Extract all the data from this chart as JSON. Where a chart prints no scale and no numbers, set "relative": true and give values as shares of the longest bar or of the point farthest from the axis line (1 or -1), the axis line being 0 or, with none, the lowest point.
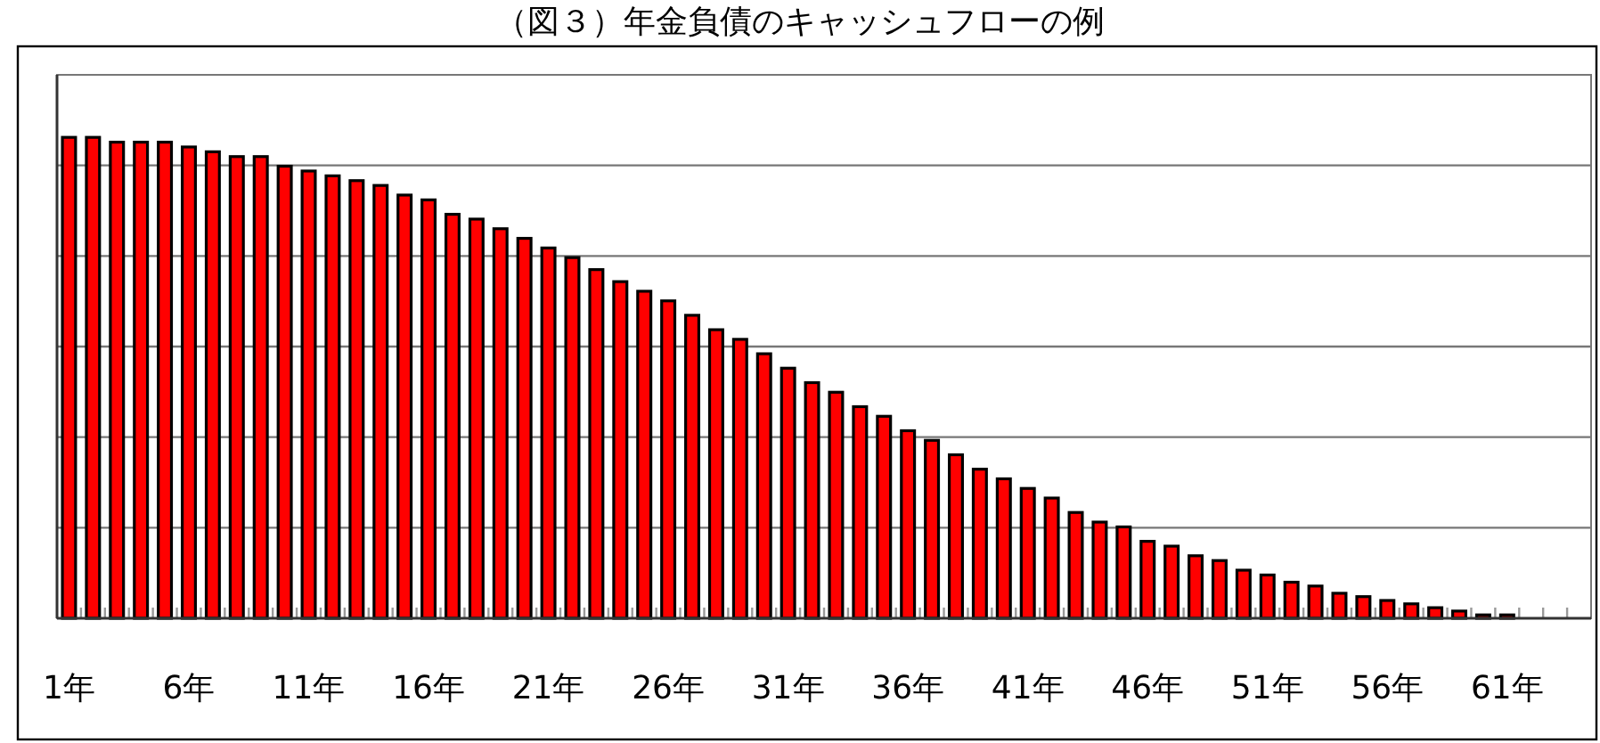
{
  "chart_data": {
    "type": "bar",
    "title": "（図３）年金負債のキャッシュフローの例",
    "relative": true,
    "grid": "y",
    "color": "#ff0000",
    "categories": [
      "1年",
      null,
      null,
      null,
      null,
      "6年",
      null,
      null,
      null,
      null,
      "11年",
      null,
      null,
      null,
      null,
      "16年",
      null,
      null,
      null,
      null,
      "21年",
      null,
      null,
      null,
      null,
      "26年",
      null,
      null,
      null,
      null,
      "31年",
      null,
      null,
      null,
      null,
      "36年",
      null,
      null,
      null,
      null,
      "41年",
      null,
      null,
      null,
      null,
      "46年",
      null,
      null,
      null,
      null,
      "51年",
      null,
      null,
      null,
      null,
      "56年",
      null,
      null,
      null,
      null,
      "61年",
      null,
      null,
      null
    ],
    "values": [
      1.0,
      1.0,
      0.99,
      0.99,
      0.99,
      0.98,
      0.97,
      0.96,
      0.96,
      0.94,
      0.93,
      0.92,
      0.91,
      0.9,
      0.88,
      0.87,
      0.84,
      0.83,
      0.81,
      0.79,
      0.77,
      0.75,
      0.725,
      0.7,
      0.68,
      0.66,
      0.63,
      0.6,
      0.58,
      0.55,
      0.52,
      0.49,
      0.47,
      0.44,
      0.42,
      0.39,
      0.37,
      0.34,
      0.31,
      0.29,
      0.27,
      0.25,
      0.22,
      0.2,
      0.19,
      0.16,
      0.15,
      0.13,
      0.12,
      0.1,
      0.09,
      0.075,
      0.067,
      0.052,
      0.045,
      0.037,
      0.03,
      0.022,
      0.015,
      0.007,
      0.007,
      0,
      0,
      0
    ]
  }
}
